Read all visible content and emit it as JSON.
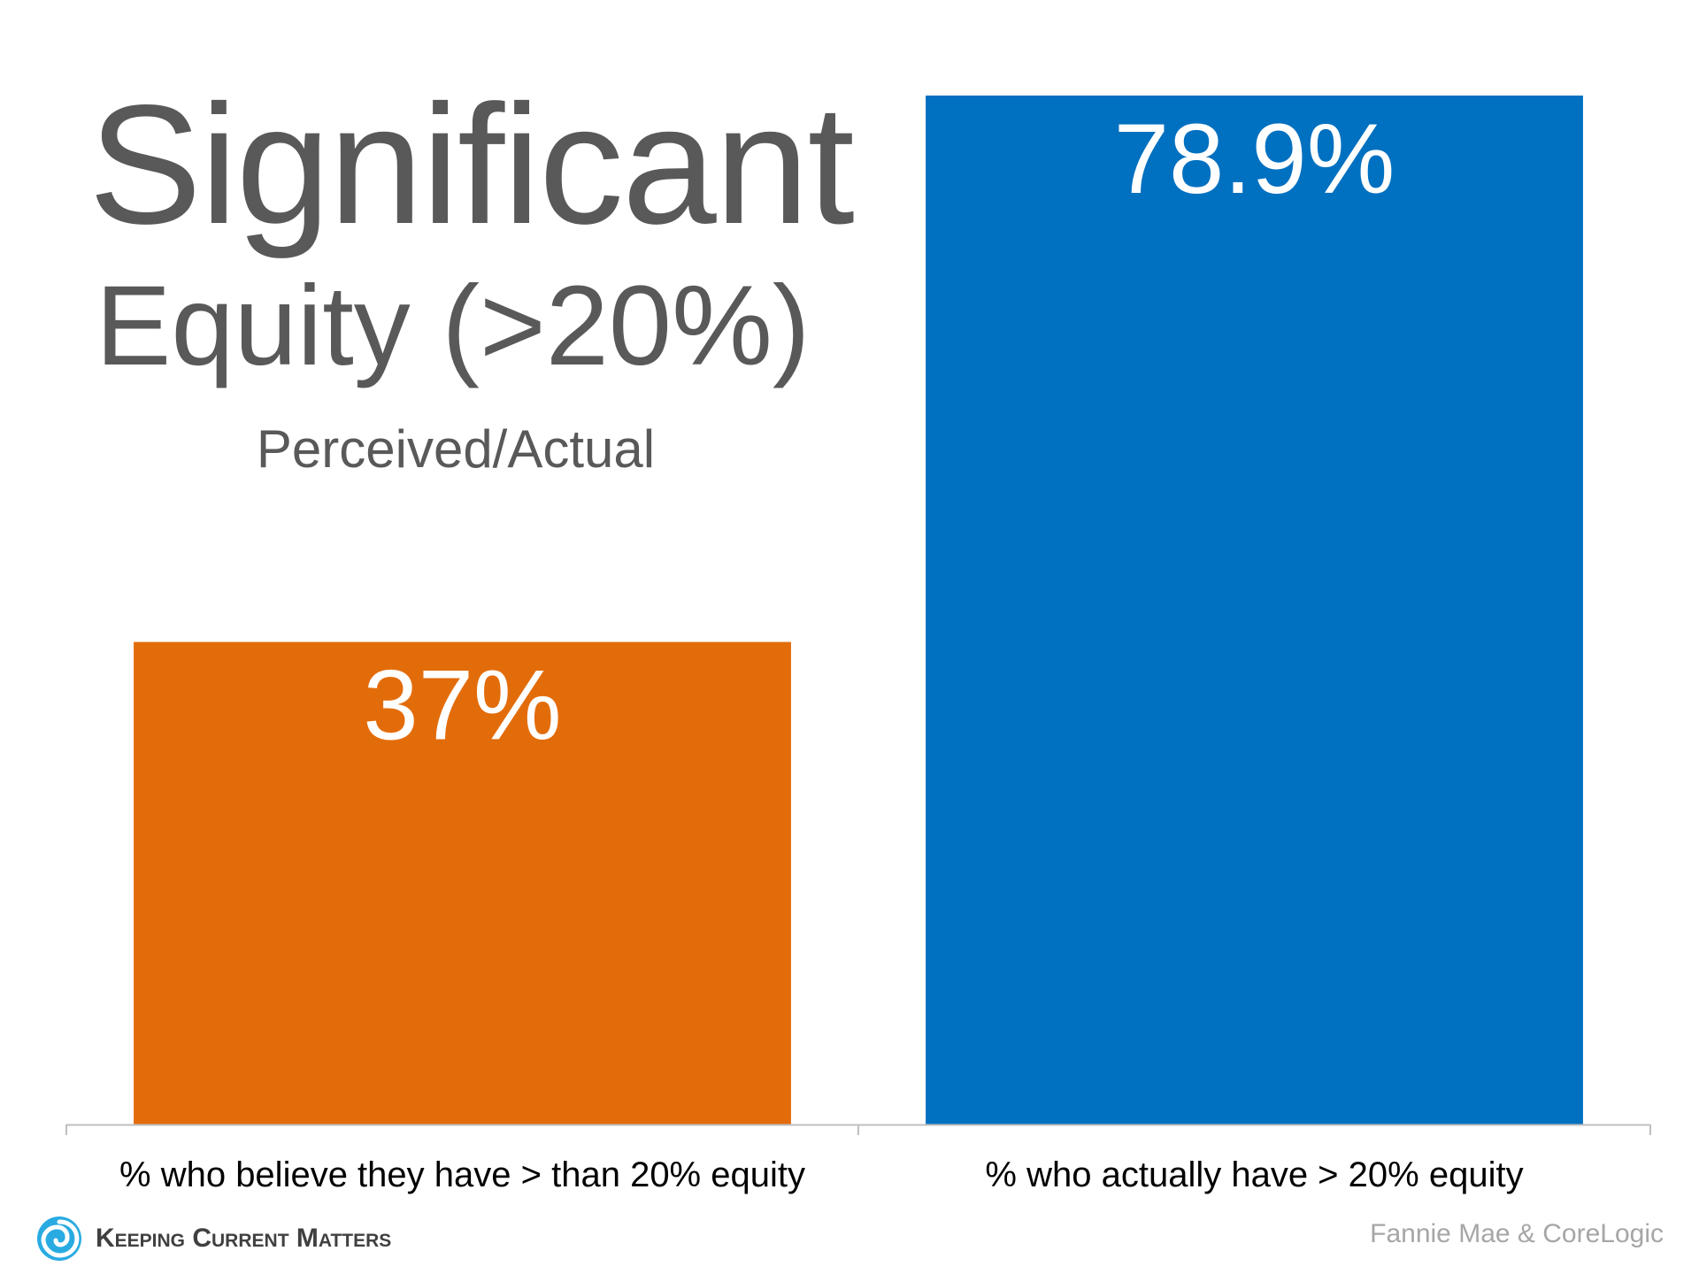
{
  "header": {
    "title_line1": "Significant",
    "title_line2": "Equity (>20%)",
    "subtitle": "Perceived/Actual"
  },
  "chart_data": {
    "type": "bar",
    "categories": [
      "% who believe they have > than 20% equity",
      "% who actually have > 20% equity"
    ],
    "values": [
      37,
      78.9
    ],
    "data_labels": [
      "37%",
      "78.9%"
    ],
    "colors": [
      "#E36C0A",
      "#0070C0"
    ],
    "ylim": [
      0,
      80
    ],
    "grid": false,
    "legend": "none"
  },
  "footer": {
    "brand": "Keeping Current Matters",
    "brand_icon": "swirl-logo-icon",
    "brand_color": "#29ABE2",
    "source": "Fannie Mae & CoreLogic"
  }
}
